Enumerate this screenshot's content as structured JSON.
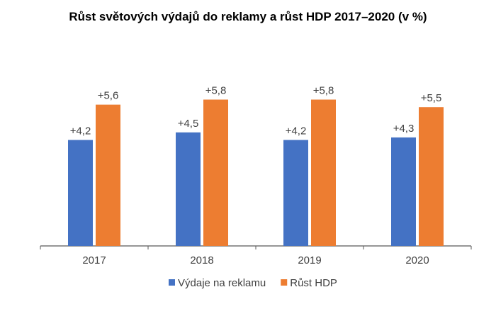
{
  "chart_data": {
    "type": "bar",
    "title": "Růst světových výdajů do reklamy a růst HDP 2017–2020 (v %)",
    "categories": [
      "2017",
      "2018",
      "2019",
      "2020"
    ],
    "series": [
      {
        "name": "Výdaje na reklamu",
        "color": "#4472C4",
        "values": [
          4.2,
          4.5,
          4.2,
          4.3
        ],
        "labels": [
          "+4,2",
          "+4,5",
          "+4,2",
          "+4,3"
        ]
      },
      {
        "name": "Růst HDP",
        "color": "#ED7D31",
        "values": [
          5.6,
          5.8,
          5.8,
          5.5
        ],
        "labels": [
          "+5,6",
          "+5,8",
          "+5,8",
          "+5,5"
        ]
      }
    ],
    "xlabel": "",
    "ylabel": "",
    "ylim": [
      0,
      7
    ],
    "grid": false,
    "legend": "bottom"
  }
}
